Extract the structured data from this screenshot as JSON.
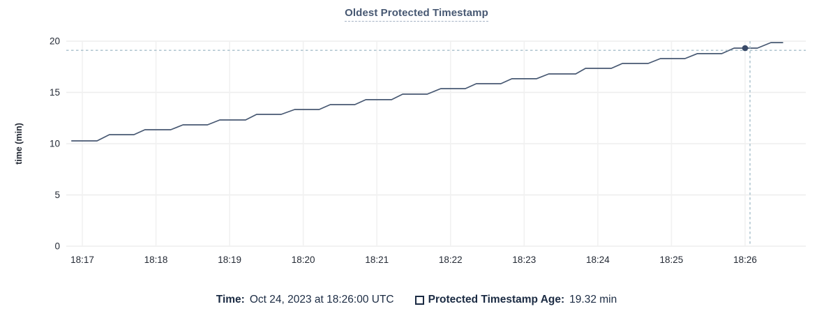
{
  "title": "Oldest Protected Timestamp",
  "tooltip": {
    "time_label": "Time:",
    "time_value": "Oct 24, 2023 at 18:26:00 UTC",
    "series_label": "Protected Timestamp Age:",
    "series_value": "19.32 min"
  },
  "colors": {
    "line": "#475872",
    "dot": "#394a68",
    "title": "#475872",
    "crosshair": "#a6bfca",
    "grid": "#ededed",
    "axis_text": "#242a35",
    "legend_text": "#1b2b43"
  },
  "chart_data": {
    "type": "line",
    "title": "Oldest Protected Timestamp",
    "xlabel": "",
    "ylabel": "time (min)",
    "ylim": [
      0,
      20
    ],
    "y_ticks": [
      0,
      5,
      10,
      15,
      20
    ],
    "x_ticks": [
      "18:17",
      "18:18",
      "18:19",
      "18:20",
      "18:21",
      "18:22",
      "18:23",
      "18:24",
      "18:25",
      "18:26"
    ],
    "x_domain": [
      "18:16:50",
      "18:26:49"
    ],
    "grid": true,
    "legend_position": "bottom",
    "series": [
      {
        "name": "Protected Timestamp Age",
        "unit": "min",
        "points": [
          [
            "18:16:51",
            10.27
          ],
          [
            "18:17:12",
            10.27
          ],
          [
            "18:17:22",
            10.88
          ],
          [
            "18:17:42",
            10.88
          ],
          [
            "18:17:51",
            11.36
          ],
          [
            "18:18:12",
            11.36
          ],
          [
            "18:18:22",
            11.84
          ],
          [
            "18:18:42",
            11.84
          ],
          [
            "18:18:52",
            12.31
          ],
          [
            "18:19:13",
            12.31
          ],
          [
            "18:19:22",
            12.86
          ],
          [
            "18:19:42",
            12.86
          ],
          [
            "18:19:53",
            13.33
          ],
          [
            "18:20:13",
            13.33
          ],
          [
            "18:20:22",
            13.81
          ],
          [
            "18:20:42",
            13.81
          ],
          [
            "18:20:51",
            14.29
          ],
          [
            "18:21:12",
            14.29
          ],
          [
            "18:21:21",
            14.83
          ],
          [
            "18:21:41",
            14.83
          ],
          [
            "18:21:52",
            15.37
          ],
          [
            "18:22:12",
            15.37
          ],
          [
            "18:22:21",
            15.85
          ],
          [
            "18:22:41",
            15.85
          ],
          [
            "18:22:50",
            16.33
          ],
          [
            "18:23:10",
            16.33
          ],
          [
            "18:23:20",
            16.8
          ],
          [
            "18:23:42",
            16.8
          ],
          [
            "18:23:50",
            17.35
          ],
          [
            "18:24:11",
            17.35
          ],
          [
            "18:24:20",
            17.82
          ],
          [
            "18:24:41",
            17.82
          ],
          [
            "18:24:51",
            18.3
          ],
          [
            "18:25:11",
            18.3
          ],
          [
            "18:25:21",
            18.78
          ],
          [
            "18:25:41",
            18.78
          ],
          [
            "18:25:51",
            19.32
          ],
          [
            "18:26:10",
            19.32
          ],
          [
            "18:26:21",
            19.86
          ],
          [
            "18:26:31",
            19.86
          ]
        ]
      }
    ],
    "highlight_point": {
      "time": "18:26:00",
      "value": 19.32
    },
    "crosshair": {
      "x_time": "18:26:04",
      "y_value": 19.1
    }
  }
}
